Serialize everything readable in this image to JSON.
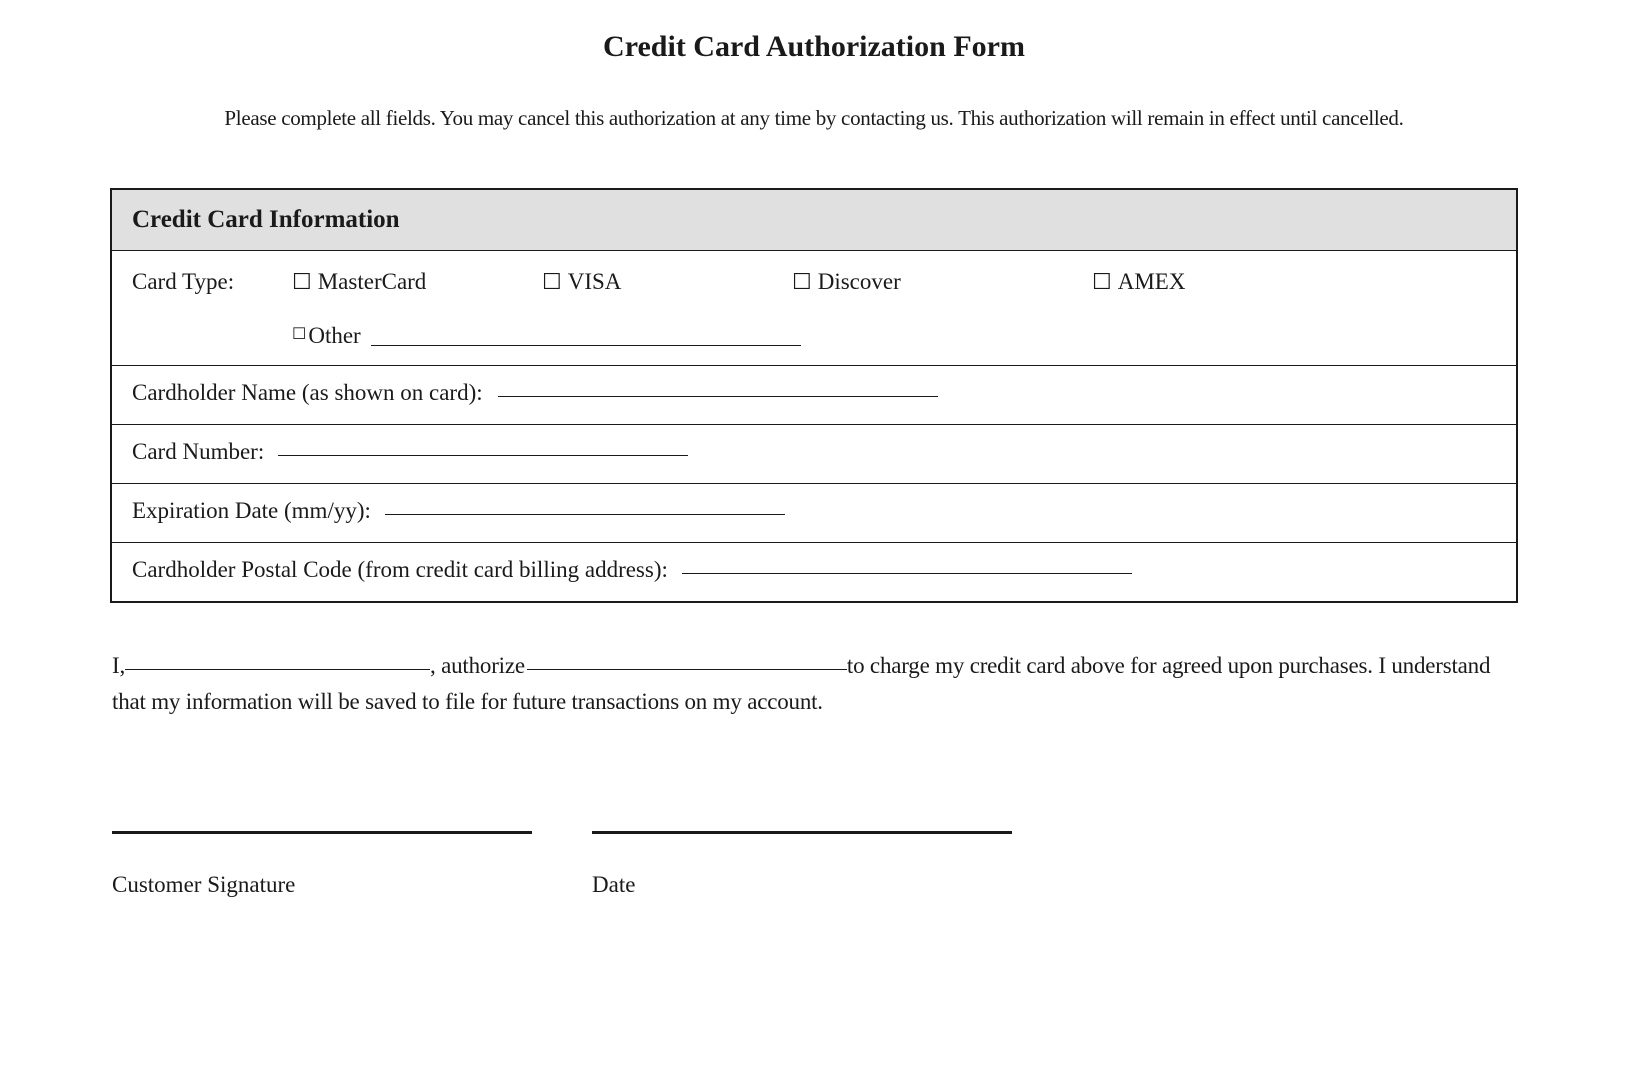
{
  "title": "Credit Card Authorization Form",
  "instructions": "Please complete all fields. You may cancel this authorization at any time by contacting us. This authorization will remain in effect until cancelled.",
  "section_header": "Credit Card Information",
  "card_type": {
    "label": "Card Type:",
    "options": {
      "mastercard": "MasterCard",
      "visa": "VISA",
      "discover": "Discover",
      "amex": "AMEX",
      "other": "Other"
    }
  },
  "fields": {
    "cardholder_name": "Cardholder Name (as shown on card):",
    "card_number": "Card Number:",
    "expiration_date": "Expiration Date (mm/yy):",
    "postal_code": "Cardholder Postal Code (from credit card billing address):"
  },
  "authorization": {
    "part1": "I,",
    "part2": ", authorize",
    "part3": "to charge my credit card above for agreed upon purchases. I understand that my information will be saved to file for future transactions on my account."
  },
  "signature": {
    "customer_label": "Customer Signature",
    "date_label": "Date"
  },
  "styling": {
    "background_color": "#ffffff",
    "text_color": "#1a1a1a",
    "header_bg": "#e0e0e0",
    "border_color": "#1a1a1a",
    "title_fontsize": 30,
    "body_fontsize": 23,
    "instruction_fontsize": 21,
    "header_fontsize": 25,
    "checkbox_glyph": "☐"
  }
}
